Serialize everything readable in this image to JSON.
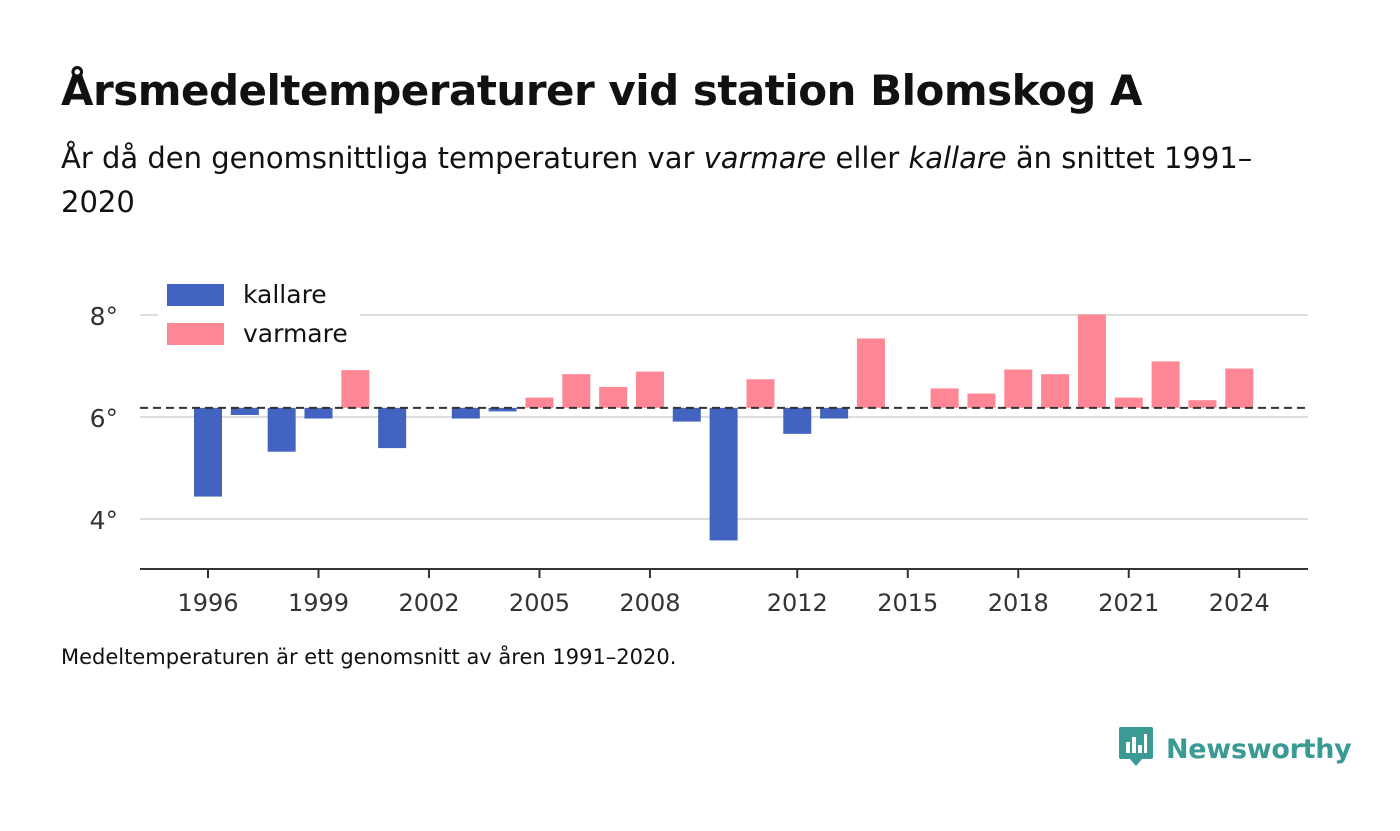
{
  "title": "Årsmedeltemperaturer vid station Blomskog A",
  "subtitle": {
    "before": "År då den genomsnittliga temperaturen var ",
    "warm_word": "varmare",
    "middle": " eller ",
    "cold_word": "kallare",
    "after": " än snittet 1991–2020"
  },
  "note": "Medeltemperaturen är ett genomsnitt av åren 1991–2020.",
  "brand": {
    "name": "Newsworthy",
    "icon": "newsworthy-logo-icon",
    "color": "#3a9a94"
  },
  "chart_data": {
    "type": "bar",
    "baseline": 6.18,
    "ylim": [
      3,
      8.4
    ],
    "y_ticks": [
      4,
      6,
      8
    ],
    "y_tick_labels": [
      "4°",
      "6°",
      "8°"
    ],
    "x_ticks": [
      1996,
      1999,
      2002,
      2005,
      2008,
      2012,
      2015,
      2018,
      2021,
      2024
    ],
    "x_tick_labels": [
      "1996",
      "1999",
      "2002",
      "2005",
      "2008",
      "2012",
      "2015",
      "2018",
      "2021",
      "2024"
    ],
    "grid": true,
    "legend_position": "top-left",
    "legend": [
      {
        "label": "kallare",
        "color": "#4263c0"
      },
      {
        "label": "varmare",
        "color": "#ff8795"
      }
    ],
    "years": [
      1996,
      1997,
      1998,
      1999,
      2000,
      2001,
      2003,
      2004,
      2005,
      2006,
      2007,
      2008,
      2009,
      2010,
      2011,
      2012,
      2013,
      2014,
      2016,
      2017,
      2018,
      2019,
      2020,
      2021,
      2022,
      2023,
      2024
    ],
    "values": [
      4.44,
      6.04,
      5.32,
      5.97,
      6.92,
      5.39,
      5.97,
      6.11,
      6.38,
      6.84,
      6.59,
      6.89,
      5.91,
      3.58,
      6.74,
      5.67,
      5.97,
      7.54,
      6.56,
      6.46,
      6.93,
      6.84,
      8.01,
      6.38,
      7.09,
      6.33,
      6.95
    ]
  }
}
